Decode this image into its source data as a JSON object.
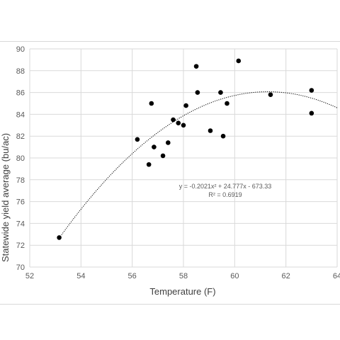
{
  "chart_data": {
    "type": "scatter",
    "title": "",
    "xlabel": "Temperature (F)",
    "ylabel": "Statewide yield average (bu/ac)",
    "xlim": [
      52,
      64
    ],
    "ylim": [
      70,
      90
    ],
    "x_ticks": [
      "52",
      "54",
      "56",
      "58",
      "60",
      "62",
      "64"
    ],
    "y_ticks": [
      "70",
      "72",
      "74",
      "76",
      "78",
      "80",
      "82",
      "84",
      "86",
      "88",
      "90"
    ],
    "grid": "vertical and horizontal",
    "legend": "none",
    "series": [
      {
        "points": [
          [
            53.15,
            72.7
          ],
          [
            56.2,
            81.7
          ],
          [
            56.65,
            79.4
          ],
          [
            56.75,
            85.0
          ],
          [
            56.85,
            81.0
          ],
          [
            57.2,
            80.2
          ],
          [
            57.4,
            81.4
          ],
          [
            57.6,
            83.5
          ],
          [
            57.8,
            83.2
          ],
          [
            58.0,
            83.0
          ],
          [
            58.1,
            84.8
          ],
          [
            58.5,
            88.4
          ],
          [
            58.55,
            86.0
          ],
          [
            59.05,
            82.5
          ],
          [
            59.45,
            86.0
          ],
          [
            59.55,
            82.0
          ],
          [
            59.7,
            85.0
          ],
          [
            60.15,
            88.9
          ],
          [
            61.4,
            85.8
          ],
          [
            63.0,
            86.2
          ],
          [
            63.0,
            84.1
          ]
        ]
      }
    ],
    "trendline": {
      "type": "polynomial",
      "order": 2,
      "coefficients": [
        -0.2021,
        24.777,
        -673.33
      ],
      "x_range": [
        53.15,
        64
      ],
      "equation": "y = -0.2021x² + 24.777x - 673.33",
      "r_squared": "R² = 0.6919"
    },
    "colors": {
      "points": "#000000",
      "grid": "#d9d9d9",
      "trendline": "#000000"
    }
  }
}
